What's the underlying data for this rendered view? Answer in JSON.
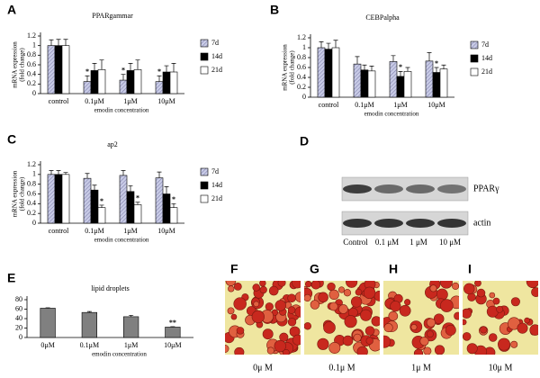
{
  "chart_data": [
    {
      "type": "bar",
      "panel": "A",
      "title": "PPARgammar",
      "ylabel": [
        "mRNA expression",
        "(fold change)"
      ],
      "xlabel": "emodin  concentration",
      "categories": [
        "control",
        "0.1μM",
        "1μM",
        "10μM"
      ],
      "ylim": [
        0,
        1.2
      ],
      "yticks": [
        0,
        0.2,
        0.4,
        0.6,
        0.8,
        1,
        1.2
      ],
      "series": [
        {
          "name": "7d",
          "color": "#c8cbe6",
          "hatch": true,
          "values": [
            1,
            0.25,
            0.28,
            0.25
          ],
          "errors": [
            0.12,
            0.12,
            0.12,
            0.12
          ],
          "markers": [
            null,
            "*",
            "*",
            "*"
          ]
        },
        {
          "name": "14d",
          "color": "#000000",
          "values": [
            1,
            0.48,
            0.48,
            0.45
          ],
          "errors": [
            0.13,
            0.15,
            0.15,
            0.13
          ]
        },
        {
          "name": "21d",
          "color": "#ffffff",
          "values": [
            1,
            0.5,
            0.5,
            0.45
          ],
          "errors": [
            0.13,
            0.2,
            0.2,
            0.18
          ]
        }
      ]
    },
    {
      "type": "bar",
      "panel": "B",
      "title": "CEBPalpha",
      "ylabel": [
        "mRNA expression",
        "(fold change)"
      ],
      "xlabel": "emodin  concentration",
      "categories": [
        "control",
        "0.1μM",
        "1μM",
        "10μM"
      ],
      "ylim": [
        0,
        1.2
      ],
      "yticks": [
        0,
        0.2,
        0.4,
        0.6,
        0.8,
        1,
        1.2
      ],
      "series": [
        {
          "name": "7d",
          "color": "#c8cbe6",
          "hatch": true,
          "values": [
            1,
            0.67,
            0.72,
            0.73
          ],
          "errors": [
            0.12,
            0.15,
            0.12,
            0.17
          ]
        },
        {
          "name": "14d",
          "color": "#000000",
          "values": [
            0.97,
            0.55,
            0.42,
            0.5
          ],
          "errors": [
            0.12,
            0.1,
            0.1,
            0.1
          ],
          "markers": [
            null,
            null,
            "*",
            "*"
          ]
        },
        {
          "name": "21d",
          "color": "#ffffff",
          "values": [
            1,
            0.53,
            0.52,
            0.57
          ],
          "errors": [
            0.15,
            0.1,
            0.08,
            0.08
          ]
        }
      ]
    },
    {
      "type": "bar",
      "panel": "C",
      "title": "ap2",
      "ylabel": [
        "mRNA expression",
        "(fold change)"
      ],
      "xlabel": "emodin  concentration",
      "categories": [
        "control",
        "0.1μM",
        "1μM",
        "10μM"
      ],
      "ylim": [
        0,
        1.2
      ],
      "yticks": [
        0,
        0.2,
        0.4,
        0.6,
        0.8,
        1,
        1.2
      ],
      "series": [
        {
          "name": "7d",
          "color": "#c8cbe6",
          "hatch": true,
          "values": [
            1,
            0.92,
            0.98,
            0.93
          ],
          "errors": [
            0.08,
            0.1,
            0.1,
            0.12
          ]
        },
        {
          "name": "14d",
          "color": "#000000",
          "values": [
            1,
            0.68,
            0.65,
            0.6
          ],
          "errors": [
            0.08,
            0.1,
            0.12,
            0.15
          ]
        },
        {
          "name": "21d",
          "color": "#ffffff",
          "values": [
            1,
            0.32,
            0.38,
            0.32
          ],
          "errors": [
            0.04,
            0.05,
            0.05,
            0.08
          ],
          "markers": [
            null,
            "*",
            "*",
            "*"
          ]
        }
      ]
    },
    {
      "type": "bar",
      "panel": "E",
      "title": "lipid droplets",
      "xlabel": "emodin concentration",
      "categories": [
        "0μM",
        "0.1μM",
        "1μM",
        "10μM"
      ],
      "ylim": [
        0,
        80
      ],
      "yticks": [
        0,
        20,
        40,
        60,
        80
      ],
      "values": [
        62,
        53,
        44,
        22
      ],
      "errors": [
        1,
        2,
        3,
        1
      ],
      "markers": [
        null,
        null,
        null,
        "**"
      ],
      "color": "#808080"
    }
  ],
  "blot": {
    "panel": "D",
    "rows": [
      "PPARγ",
      "actin"
    ],
    "lanes": [
      "Control",
      "0.1 μM",
      "1 μM",
      "10 μM"
    ]
  },
  "micrographs": [
    {
      "panel": "F",
      "label": "0μ M"
    },
    {
      "panel": "G",
      "label": "0.1μ M"
    },
    {
      "panel": "H",
      "label": "1μ M"
    },
    {
      "panel": "I",
      "label": "10μ M"
    }
  ]
}
